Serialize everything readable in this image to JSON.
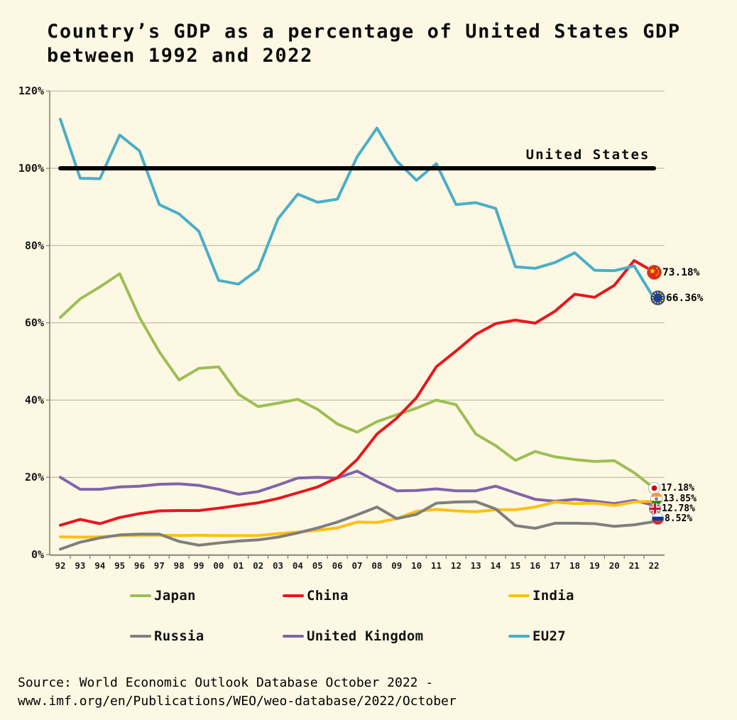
{
  "title": {
    "line1": "Country’s GDP as a percentage of United States GDP",
    "line2": "between 1992 and 2022"
  },
  "source": {
    "line1": "Source: World Economic Outlook Database October 2022 -",
    "line2": "www.imf.org/en/Publications/WEO/weo-database/2022/October"
  },
  "chart_data": {
    "type": "line",
    "x_tick_labels": [
      "92",
      "93",
      "94",
      "95",
      "96",
      "97",
      "98",
      "99",
      "00",
      "01",
      "02",
      "03",
      "04",
      "05",
      "06",
      "07",
      "08",
      "09",
      "10",
      "11",
      "12",
      "13",
      "14",
      "15",
      "16",
      "17",
      "18",
      "19",
      "20",
      "21",
      "22"
    ],
    "y_tick_labels": [
      "0%",
      "20%",
      "40%",
      "60%",
      "80%",
      "100%",
      "120%"
    ],
    "ylim": [
      0,
      120
    ],
    "grid": true,
    "legend_position": "bottom",
    "reference_line": {
      "label": "United States",
      "value": 100,
      "color": "#000000"
    },
    "series": [
      {
        "name": "Japan",
        "color": "#9cbf53",
        "flag": "japan",
        "end_label": "17.18%",
        "values": [
          61.4,
          66.2,
          69.3,
          72.7,
          61.4,
          52.5,
          45.2,
          48.2,
          48.6,
          41.5,
          38.3,
          39.2,
          40.2,
          37.6,
          33.8,
          31.7,
          34.4,
          36.2,
          37.9,
          40.0,
          38.8,
          31.2,
          28.2,
          24.4,
          26.7,
          25.3,
          24.6,
          24.1,
          24.3,
          21.2,
          17.18
        ]
      },
      {
        "name": "China",
        "color": "#e8161d",
        "flag": "china",
        "end_label": "73.18%",
        "values": [
          7.6,
          9.1,
          8.0,
          9.6,
          10.6,
          11.3,
          11.4,
          11.4,
          12.0,
          12.7,
          13.4,
          14.5,
          16.0,
          17.5,
          19.9,
          24.6,
          31.2,
          35.3,
          40.6,
          48.6,
          52.7,
          57.0,
          59.8,
          60.7,
          59.9,
          63.0,
          67.4,
          66.6,
          69.7,
          76.1,
          73.18
        ]
      },
      {
        "name": "India",
        "color": "#fdc010",
        "flag": "india",
        "end_label": "13.85%",
        "values": [
          4.6,
          4.5,
          4.6,
          4.9,
          5.0,
          5.0,
          4.9,
          5.0,
          4.9,
          4.9,
          4.9,
          5.4,
          5.8,
          6.3,
          6.9,
          8.4,
          8.3,
          9.3,
          11.2,
          11.7,
          11.3,
          11.1,
          11.6,
          11.6,
          12.3,
          13.6,
          13.2,
          13.3,
          12.7,
          13.6,
          13.85
        ]
      },
      {
        "name": "Russia",
        "color": "#7f7f7f",
        "flag": "russia",
        "end_label": "8.52%",
        "values": [
          1.4,
          3.2,
          4.3,
          5.1,
          5.3,
          5.3,
          3.4,
          2.4,
          3.0,
          3.5,
          3.8,
          4.5,
          5.6,
          6.9,
          8.4,
          10.3,
          12.3,
          9.3,
          10.4,
          13.3,
          13.6,
          13.7,
          11.8,
          7.5,
          6.8,
          8.1,
          8.1,
          8.0,
          7.3,
          7.7,
          8.52
        ]
      },
      {
        "name": "United Kingdom",
        "color": "#8164aa",
        "flag": "uk",
        "end_label": "12.78%",
        "values": [
          20.0,
          16.9,
          16.9,
          17.5,
          17.7,
          18.2,
          18.3,
          17.9,
          16.9,
          15.6,
          16.3,
          18.0,
          19.8,
          20.0,
          19.8,
          21.6,
          18.9,
          16.5,
          16.6,
          17.0,
          16.5,
          16.5,
          17.7,
          16.0,
          14.3,
          13.8,
          14.3,
          13.8,
          13.2,
          14.0,
          12.78
        ]
      },
      {
        "name": "EU27",
        "color": "#4aaec9",
        "flag": "eu",
        "end_label": "66.36%",
        "values": [
          112.7,
          97.4,
          97.3,
          108.6,
          104.5,
          90.6,
          88.2,
          83.7,
          71.0,
          70.0,
          73.8,
          86.9,
          93.3,
          91.2,
          92.0,
          103.0,
          110.4,
          101.9,
          96.9,
          101.2,
          90.6,
          91.1,
          89.6,
          74.5,
          74.1,
          75.6,
          78.1,
          73.6,
          73.5,
          74.7,
          66.36
        ]
      }
    ]
  },
  "legend": {
    "row1": [
      "Japan",
      "China",
      "India"
    ],
    "row2": [
      "Russia",
      "United Kingdom",
      "EU27"
    ]
  }
}
